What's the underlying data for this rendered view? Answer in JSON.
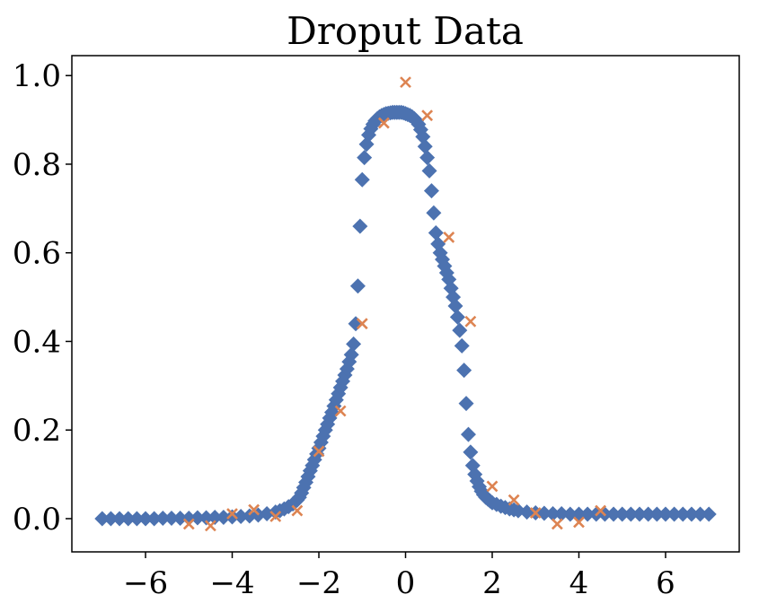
{
  "chart_data": {
    "type": "scatter",
    "title": "Droput Data",
    "xlabel": "",
    "ylabel": "",
    "xlim": [
      -7.7,
      7.7
    ],
    "ylim": [
      -0.075,
      1.045
    ],
    "xticks": [
      -6,
      -4,
      -2,
      0,
      2,
      4,
      6
    ],
    "xtick_labels": [
      "−6",
      "−4",
      "−2",
      "0",
      "2",
      "4",
      "6"
    ],
    "yticks": [
      0.0,
      0.2,
      0.4,
      0.6,
      0.8,
      1.0
    ],
    "ytick_labels": [
      "0.0",
      "0.2",
      "0.4",
      "0.6",
      "0.8",
      "1.0"
    ],
    "grid": false,
    "legend": "none",
    "series": [
      {
        "marker": "diamond",
        "color": "#4c72b0",
        "x": [
          -7.0,
          -6.8,
          -6.6,
          -6.4,
          -6.2,
          -6.0,
          -5.8,
          -5.6,
          -5.4,
          -5.2,
          -5.0,
          -4.8,
          -4.6,
          -4.4,
          -4.2,
          -4.0,
          -3.8,
          -3.6,
          -3.4,
          -3.2,
          -3.0,
          -2.9,
          -2.8,
          -2.7,
          -2.6,
          -2.5,
          -2.45,
          -2.4,
          -2.35,
          -2.3,
          -2.25,
          -2.2,
          -2.15,
          -2.1,
          -2.05,
          -2.0,
          -1.95,
          -1.9,
          -1.85,
          -1.8,
          -1.75,
          -1.7,
          -1.65,
          -1.6,
          -1.55,
          -1.5,
          -1.45,
          -1.4,
          -1.35,
          -1.3,
          -1.25,
          -1.2,
          -1.15,
          -1.1,
          -1.05,
          -1.0,
          -0.95,
          -0.9,
          -0.85,
          -0.8,
          -0.75,
          -0.7,
          -0.65,
          -0.6,
          -0.55,
          -0.5,
          -0.45,
          -0.4,
          -0.35,
          -0.3,
          -0.25,
          -0.2,
          -0.15,
          -0.1,
          -0.05,
          0.0,
          0.05,
          0.1,
          0.15,
          0.2,
          0.25,
          0.3,
          0.35,
          0.4,
          0.45,
          0.5,
          0.55,
          0.6,
          0.65,
          0.7,
          0.75,
          0.8,
          0.85,
          0.9,
          0.95,
          1.0,
          1.05,
          1.1,
          1.15,
          1.2,
          1.25,
          1.3,
          1.35,
          1.4,
          1.45,
          1.5,
          1.55,
          1.6,
          1.65,
          1.7,
          1.75,
          1.8,
          1.85,
          1.9,
          1.95,
          2.0,
          2.1,
          2.2,
          2.3,
          2.4,
          2.5,
          2.6,
          2.8,
          3.0,
          3.2,
          3.4,
          3.6,
          3.8,
          4.0,
          4.2,
          4.4,
          4.6,
          4.8,
          5.0,
          5.2,
          5.4,
          5.6,
          5.8,
          6.0,
          6.2,
          6.4,
          6.6,
          6.8,
          7.0
        ],
        "y": [
          0.0,
          0.0,
          0.0,
          0.0,
          0.0,
          0.0,
          0.0,
          0.001,
          0.001,
          0.001,
          0.001,
          0.002,
          0.002,
          0.003,
          0.003,
          0.004,
          0.005,
          0.006,
          0.008,
          0.011,
          0.015,
          0.018,
          0.022,
          0.027,
          0.033,
          0.042,
          0.048,
          0.058,
          0.07,
          0.082,
          0.095,
          0.108,
          0.12,
          0.133,
          0.146,
          0.159,
          0.172,
          0.186,
          0.2,
          0.213,
          0.227,
          0.24,
          0.254,
          0.268,
          0.282,
          0.296,
          0.31,
          0.324,
          0.338,
          0.354,
          0.37,
          0.394,
          0.44,
          0.525,
          0.66,
          0.765,
          0.815,
          0.845,
          0.866,
          0.88,
          0.89,
          0.898,
          0.903,
          0.907,
          0.91,
          0.912,
          0.914,
          0.915,
          0.916,
          0.917,
          0.917,
          0.917,
          0.917,
          0.917,
          0.916,
          0.914,
          0.912,
          0.91,
          0.907,
          0.903,
          0.898,
          0.89,
          0.878,
          0.862,
          0.84,
          0.815,
          0.785,
          0.74,
          0.69,
          0.645,
          0.62,
          0.6,
          0.585,
          0.57,
          0.555,
          0.54,
          0.52,
          0.5,
          0.48,
          0.455,
          0.425,
          0.39,
          0.335,
          0.26,
          0.19,
          0.15,
          0.12,
          0.1,
          0.085,
          0.072,
          0.062,
          0.054,
          0.048,
          0.044,
          0.04,
          0.036,
          0.032,
          0.028,
          0.025,
          0.022,
          0.02,
          0.018,
          0.015,
          0.013,
          0.012,
          0.011,
          0.011,
          0.01,
          0.01,
          0.01,
          0.01,
          0.01,
          0.01,
          0.01,
          0.01,
          0.01,
          0.01,
          0.01,
          0.01,
          0.01,
          0.01,
          0.01,
          0.01,
          0.01
        ]
      },
      {
        "marker": "x",
        "color": "#dd8452",
        "x": [
          -5.0,
          -4.5,
          -4.0,
          -3.5,
          -3.0,
          -2.5,
          -2.0,
          -1.5,
          -1.0,
          -0.5,
          0.0,
          0.5,
          1.0,
          1.5,
          2.0,
          2.5,
          3.0,
          3.5,
          4.0,
          4.5
        ],
        "y": [
          -0.012,
          -0.016,
          0.011,
          0.02,
          0.005,
          0.018,
          0.152,
          0.243,
          0.44,
          0.893,
          0.985,
          0.91,
          0.635,
          0.445,
          0.073,
          0.042,
          0.013,
          -0.012,
          -0.008,
          0.018
        ]
      }
    ]
  }
}
